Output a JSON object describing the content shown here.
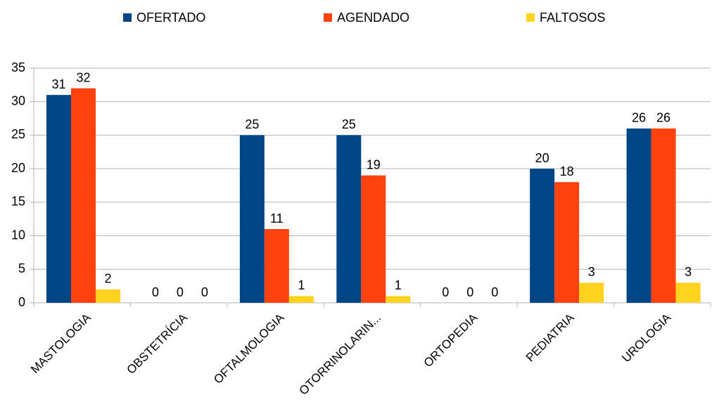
{
  "chart_data": {
    "type": "bar",
    "categories": [
      "MASTOLOGIA",
      "OBSTETRÍCIA",
      "OFTALMOLOGIA",
      "OTORRINOLARIN...",
      "ORTOPEDIA",
      "PEDIATRIA",
      "UROLOGIA"
    ],
    "series": [
      {
        "name": "OFERTADO",
        "color": "#004586",
        "values": [
          31,
          0,
          25,
          25,
          0,
          20,
          26
        ]
      },
      {
        "name": "AGENDADO",
        "color": "#ff420e",
        "values": [
          32,
          0,
          11,
          19,
          0,
          18,
          26
        ]
      },
      {
        "name": "FALTOSOS",
        "color": "#ffd320",
        "values": [
          2,
          0,
          1,
          1,
          0,
          3,
          3
        ]
      }
    ],
    "ylim": [
      0,
      35
    ],
    "yticks": [
      0,
      5,
      10,
      15,
      20,
      25,
      30,
      35
    ],
    "grid": true,
    "legend": "top"
  }
}
